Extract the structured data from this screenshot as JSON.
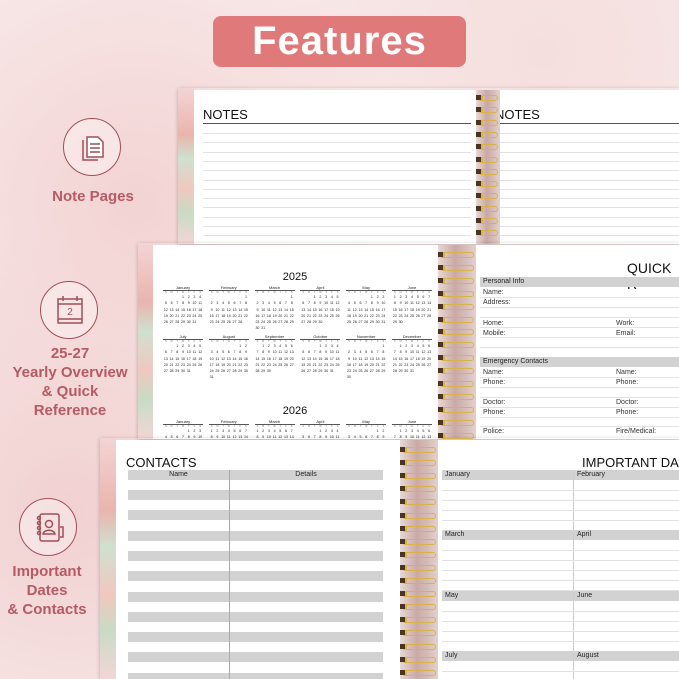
{
  "banner": {
    "title": "Features"
  },
  "features": [
    {
      "icon": "note-pages-icon",
      "lines": [
        "Note Pages"
      ]
    },
    {
      "icon": "calendar-icon",
      "calendar_day": "2",
      "lines": [
        "25-27",
        "Yearly Overview",
        "& Quick",
        "Reference"
      ]
    },
    {
      "icon": "contact-book-icon",
      "lines": [
        "Important",
        "Dates",
        "& Contacts"
      ]
    }
  ],
  "notes": {
    "left_title": "NOTES",
    "right_title": "NOTES"
  },
  "calendar": {
    "years": [
      "2025",
      "2026"
    ],
    "weekday_initials": [
      "S",
      "M",
      "T",
      "W",
      "T",
      "F",
      "S"
    ],
    "months": [
      "January",
      "February",
      "March",
      "April",
      "May",
      "June",
      "July",
      "August",
      "September",
      "October",
      "November",
      "December"
    ]
  },
  "quick_reference": {
    "title": "QUICK R",
    "personal_info": {
      "header": "Personal Info",
      "name": "Name:",
      "address": "Address:",
      "home": "Home:",
      "work": "Work:",
      "mobile": "Mobile:",
      "email": "Email:"
    },
    "emergency": {
      "header": "Emergency Contacts",
      "name1": "Name:",
      "name2": "Name:",
      "phone1": "Phone:",
      "phone2": "Phone:",
      "doctor1": "Doctor:",
      "doctor2": "Doctor:",
      "phone3": "Phone:",
      "phone4": "Phone:",
      "police": "Police:",
      "fire": "Fire/Medical:"
    }
  },
  "contacts": {
    "title": "CONTACTS",
    "col_name": "Name",
    "col_details": "Details"
  },
  "important_dates": {
    "title": "IMPORTANT DA",
    "months": [
      "January",
      "February",
      "March",
      "April",
      "May",
      "June",
      "July",
      "August"
    ]
  },
  "colors": {
    "accent": "#e07a7a",
    "label": "#b65a63",
    "icon": "#a14f57",
    "bar": "#d2d2d2",
    "ring": "#d9b24c"
  }
}
